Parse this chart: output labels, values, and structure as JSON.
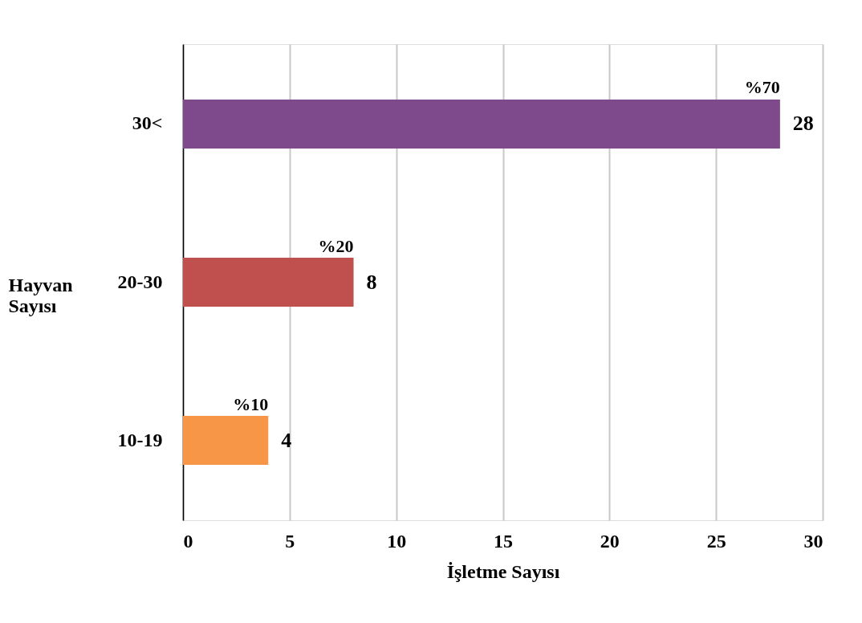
{
  "chart_data": {
    "type": "bar",
    "orientation": "horizontal",
    "categories": [
      "30<",
      "20-30",
      "10-19"
    ],
    "values": [
      28,
      8,
      4
    ],
    "colors": [
      "#7f4a8b",
      "#c0504d",
      "#f79646"
    ],
    "data_labels": true,
    "annotations": [
      {
        "text": "%70",
        "x": 28,
        "y": "30<"
      },
      {
        "text": "%20",
        "x": 8,
        "y": "20-30"
      },
      {
        "text": "%10",
        "x": 4,
        "y": "10-19"
      }
    ],
    "xlabel": "İşletme Sayısı",
    "ylabel": "Hayvan Sayısı",
    "xlim": [
      0,
      30
    ],
    "xticks": [
      0,
      5,
      10,
      15,
      20,
      25,
      30
    ],
    "grid": "x"
  }
}
